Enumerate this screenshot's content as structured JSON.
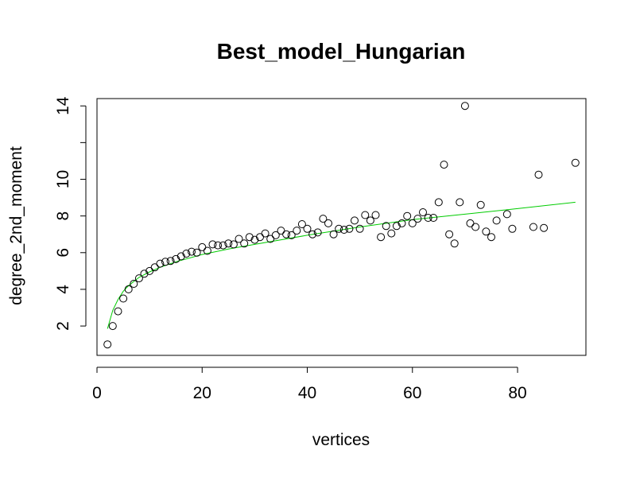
{
  "chart_data": {
    "type": "scatter",
    "title": "Best_model_Hungarian",
    "xlabel": "vertices",
    "ylabel": "degree_2nd_moment",
    "xlim": [
      0,
      93
    ],
    "ylim": [
      0.4,
      14.4
    ],
    "xticks": [
      0,
      20,
      40,
      60,
      80
    ],
    "yticks": [
      2,
      4,
      6,
      8,
      10,
      12,
      14
    ],
    "yticks_labeled": [
      2,
      4,
      6,
      8,
      10,
      14
    ],
    "grid": false,
    "legend": "none",
    "points": {
      "x": [
        2,
        3,
        4,
        5,
        6,
        7,
        8,
        9,
        10,
        11,
        12,
        13,
        14,
        15,
        16,
        17,
        18,
        19,
        20,
        21,
        22,
        23,
        24,
        25,
        26,
        27,
        28,
        29,
        30,
        31,
        32,
        33,
        34,
        35,
        36,
        37,
        38,
        39,
        40,
        41,
        42,
        43,
        44,
        45,
        46,
        47,
        48,
        49,
        50,
        51,
        52,
        53,
        54,
        55,
        56,
        57,
        58,
        59,
        60,
        61,
        62,
        63,
        64,
        65,
        66,
        67,
        68,
        69,
        70,
        71,
        72,
        73,
        74,
        75,
        76,
        78,
        79,
        83,
        84,
        85,
        91
      ],
      "y": [
        1.0,
        2.0,
        2.8,
        3.5,
        4.0,
        4.3,
        4.6,
        4.85,
        5.0,
        5.2,
        5.4,
        5.5,
        5.55,
        5.65,
        5.8,
        5.95,
        6.05,
        6.0,
        6.3,
        6.1,
        6.45,
        6.4,
        6.4,
        6.5,
        6.45,
        6.75,
        6.5,
        6.85,
        6.7,
        6.85,
        7.05,
        6.75,
        6.95,
        7.2,
        7.0,
        6.95,
        7.2,
        7.55,
        7.3,
        7.0,
        7.1,
        7.85,
        7.6,
        7.0,
        7.3,
        7.25,
        7.3,
        7.75,
        7.3,
        8.05,
        7.75,
        8.05,
        6.85,
        7.45,
        7.05,
        7.45,
        7.6,
        8.0,
        7.6,
        7.85,
        8.2,
        7.9,
        7.9,
        8.75,
        10.8,
        7.0,
        6.5,
        8.75,
        14.0,
        7.6,
        7.4,
        8.6,
        7.15,
        6.85,
        7.75,
        8.1,
        7.3,
        7.4,
        10.25,
        7.35,
        10.9
      ]
    },
    "fit_line": {
      "color": "#00cc00",
      "x": [
        2,
        3,
        4,
        5,
        6,
        8,
        10,
        12,
        15,
        20,
        25,
        30,
        40,
        50,
        60,
        70,
        80,
        91
      ],
      "y": [
        1.85,
        2.85,
        3.45,
        3.9,
        4.2,
        4.65,
        4.95,
        5.2,
        5.5,
        5.9,
        6.2,
        6.45,
        6.95,
        7.4,
        7.8,
        8.1,
        8.4,
        8.75
      ]
    }
  }
}
